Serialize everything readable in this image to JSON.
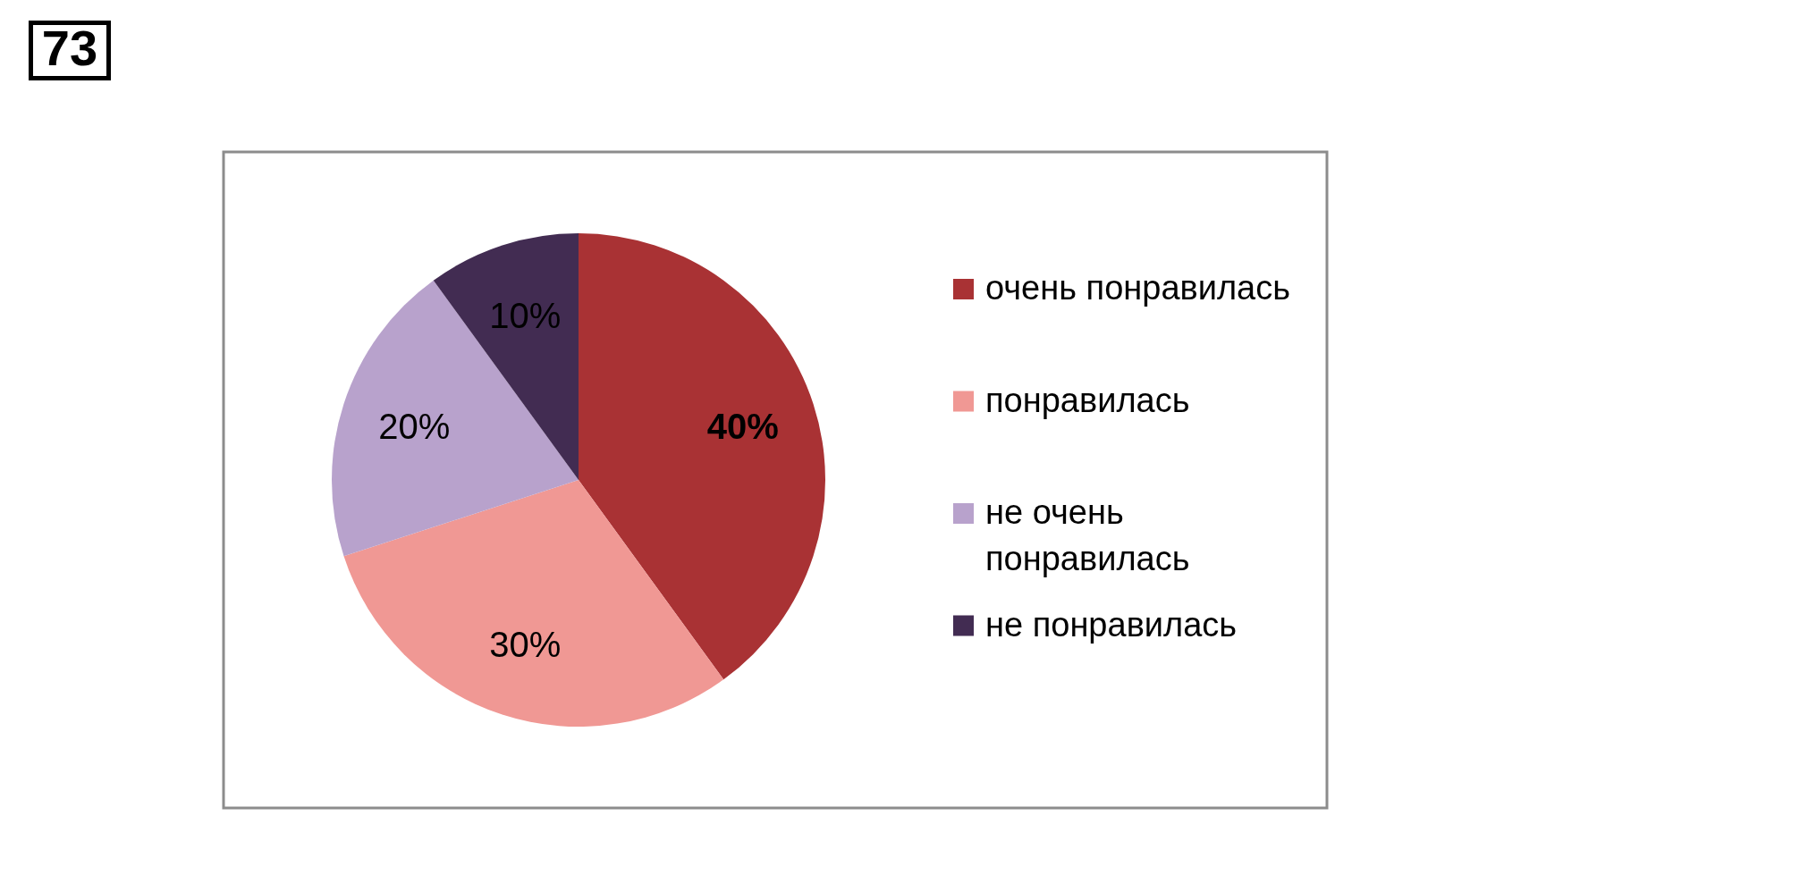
{
  "chart_data": {
    "type": "pie",
    "categories": [
      "очень понравилась",
      "понравилась",
      "не очень понравилась",
      "не понравилась"
    ],
    "values": [
      40,
      30,
      20,
      10
    ],
    "colors": [
      "#a93234",
      "#f09894",
      "#b8a2cc",
      "#422c52"
    ],
    "value_labels": [
      "40%",
      "30%",
      "20%",
      "10%"
    ],
    "legend": "right",
    "annotations": [
      "73"
    ]
  }
}
